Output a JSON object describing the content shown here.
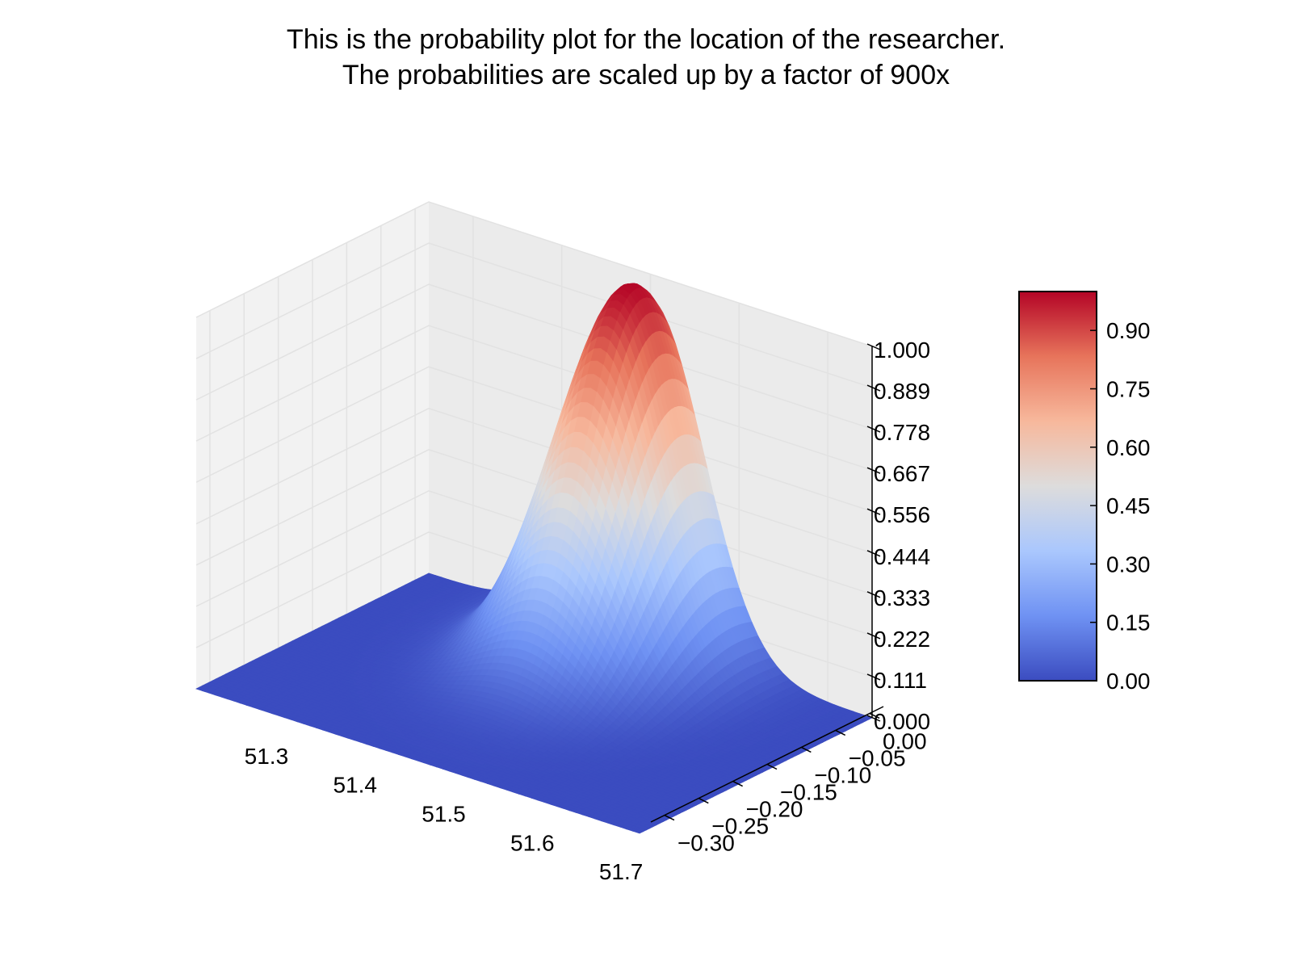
{
  "chart_data": {
    "type": "surface3d",
    "title_lines": [
      "This is the probability plot for the location of the researcher.",
      "The probabilities are scaled up by a factor of 900x"
    ],
    "xlabel": "",
    "ylabel": "",
    "zlabel": "",
    "x_ticks": [
      "51.3",
      "51.4",
      "51.5",
      "51.6",
      "51.7"
    ],
    "y_ticks": [
      "0.00",
      "−0.05",
      "−0.10",
      "−0.15",
      "−0.20",
      "−0.25",
      "−0.30"
    ],
    "z_ticks": [
      "0.000",
      "0.111",
      "0.222",
      "0.333",
      "0.444",
      "0.556",
      "0.667",
      "0.778",
      "0.889",
      "1.000"
    ],
    "xlim": [
      51.25,
      51.75
    ],
    "ylim": [
      -0.32,
      0.02
    ],
    "zlim": [
      0,
      1
    ],
    "surface": {
      "function": "gaussian",
      "peak_x": 51.5,
      "peak_y": -0.01,
      "peak_z": 1.0,
      "sigma_x": 0.06,
      "sigma_y": 0.08
    },
    "colormap": "coolwarm",
    "colormap_colors": [
      "#3b4cc0",
      "#6f92f3",
      "#aac7fd",
      "#dddcdc",
      "#f7b89c",
      "#e7745b",
      "#b40426"
    ],
    "colorbar": {
      "ticks": [
        "0.00",
        "0.15",
        "0.30",
        "0.45",
        "0.60",
        "0.75",
        "0.90"
      ],
      "range": [
        0,
        1
      ]
    },
    "grid": true,
    "pane_color": "#f2f2f2",
    "grid_color": "#e2e2e2"
  }
}
